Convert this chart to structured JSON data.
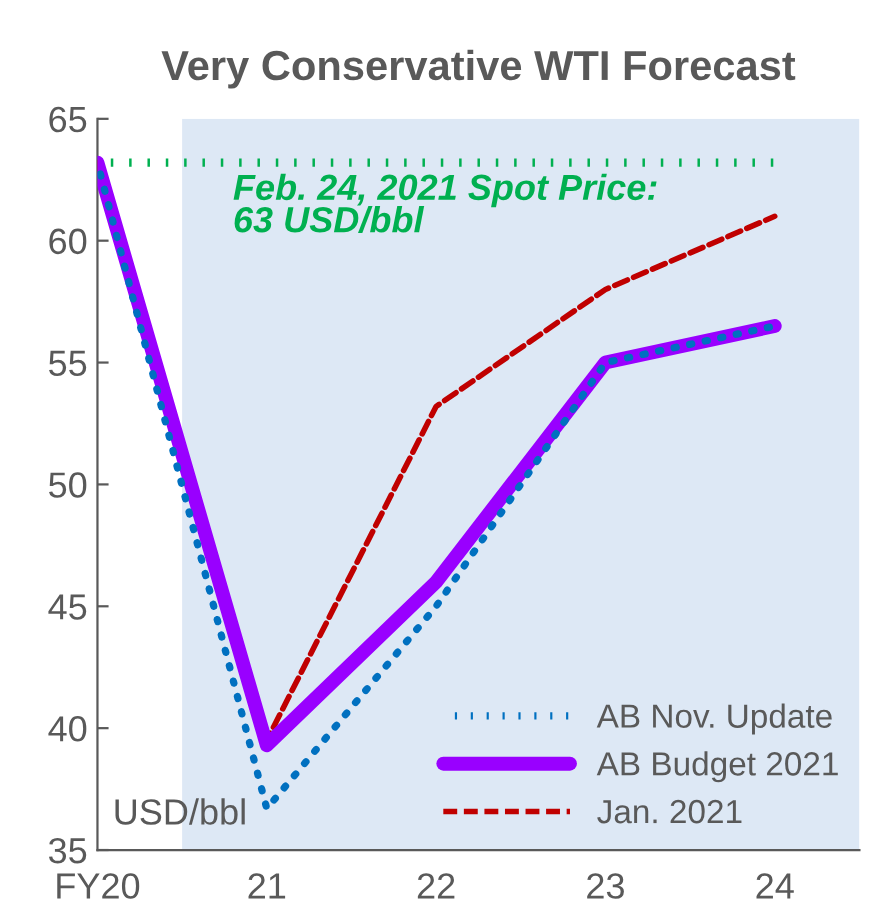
{
  "chart_data": {
    "type": "line",
    "title": "Very Conservative WTI Forecast",
    "x": [
      2020,
      2021,
      2022,
      2023,
      2024
    ],
    "xlim": [
      2020,
      2024.5
    ],
    "xticks": [
      {
        "value": 2020,
        "label": "FY20"
      },
      {
        "value": 2021,
        "label": "21"
      },
      {
        "value": 2022,
        "label": "22"
      },
      {
        "value": 2023,
        "label": "23"
      },
      {
        "value": 2024,
        "label": "24"
      }
    ],
    "ylim": [
      35,
      65
    ],
    "yticks": [
      35,
      40,
      45,
      50,
      55,
      60,
      65
    ],
    "series": [
      {
        "name": "AB Nov. Update",
        "color": "#0070c0",
        "line_style": "dotted",
        "values": [
          63.2,
          36.7,
          45,
          55,
          56.5
        ]
      },
      {
        "name": "AB Budget 2021",
        "color": "#9900ff",
        "line_style": "solid",
        "values": [
          63.2,
          39.3,
          46,
          55,
          56.5
        ]
      },
      {
        "name": "Jan. 2021",
        "color": "#c00000",
        "line_style": "dashed",
        "values": [
          63.2,
          39.5,
          53.2,
          58,
          61
        ]
      }
    ],
    "ref_lines": [
      {
        "axis": "y",
        "value": 63.2,
        "label": "Feb. 24, 2021 Spot Price:\n63 USD/bbl",
        "color": "#00b050",
        "line_style": "dotted"
      }
    ],
    "bands": [
      {
        "axis": "x",
        "from": 2020.5,
        "to": 2024.5,
        "color": "#dde8f5"
      }
    ],
    "annotations": [
      "USD/bbl"
    ],
    "grid": false,
    "legend": "bottom right",
    "marker": "none"
  }
}
